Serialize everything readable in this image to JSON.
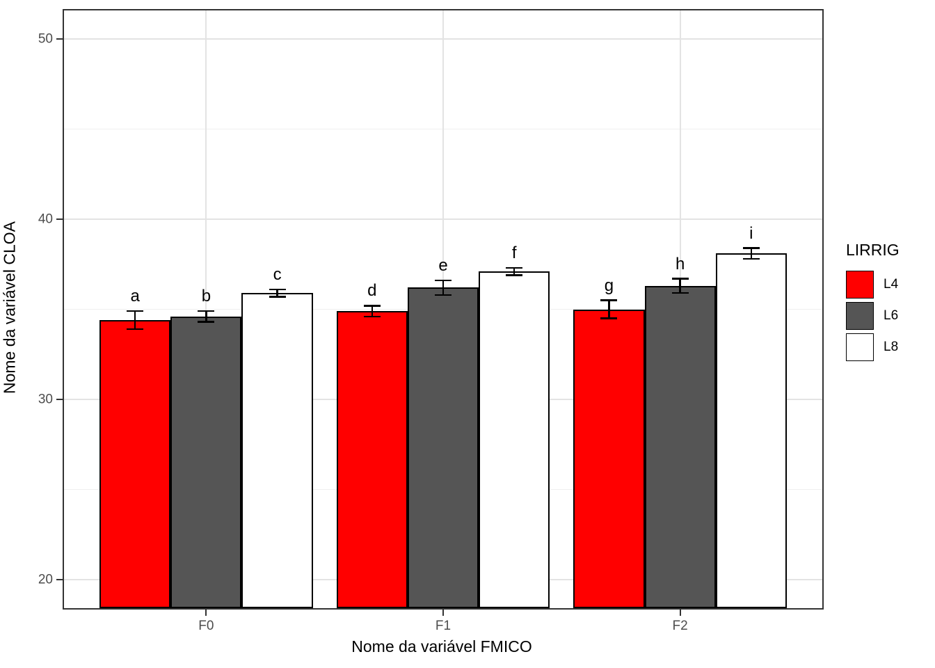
{
  "chart_data": {
    "type": "bar",
    "title": "",
    "xlabel": "Nome da variável FMICO",
    "ylabel": "Nome da variável CLOA",
    "categories": [
      "F0",
      "F1",
      "F2"
    ],
    "series": [
      {
        "name": "L4",
        "color": "#ff0000",
        "values": [
          34.4,
          34.9,
          35.0
        ],
        "errors": [
          0.5,
          0.3,
          0.5
        ],
        "point_labels": [
          "a",
          "d",
          "g"
        ]
      },
      {
        "name": "L6",
        "color": "#555555",
        "values": [
          34.6,
          36.2,
          36.3
        ],
        "errors": [
          0.3,
          0.4,
          0.4
        ],
        "point_labels": [
          "b",
          "e",
          "h"
        ]
      },
      {
        "name": "L8",
        "color": "#ffffff",
        "values": [
          35.9,
          37.1,
          38.1
        ],
        "errors": [
          0.2,
          0.2,
          0.3
        ],
        "point_labels": [
          "c",
          "f",
          "i"
        ]
      }
    ],
    "ylim": [
      18.4,
      51.6
    ],
    "yticks": [
      20,
      30,
      40,
      50
    ],
    "yticks_minor": [
      25,
      35,
      45
    ],
    "legend_title": "LIRRIG",
    "legend_position": "right",
    "grid": true,
    "bar_outline_color": "#000000",
    "error_bar_color": "#000000"
  }
}
